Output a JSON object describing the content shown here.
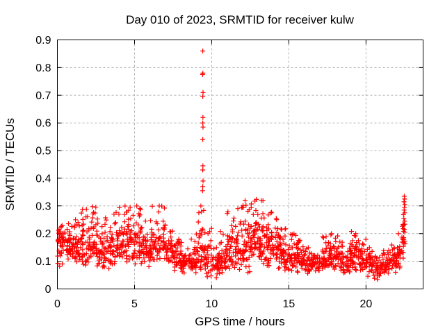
{
  "chart_data": {
    "type": "scatter",
    "title": "Day 010 of 2023, SRMTID for receiver kulw",
    "xlabel": "GPS time / hours",
    "ylabel": "SRMTID / TECUs",
    "xlim": [
      0,
      23.7
    ],
    "ylim": [
      0,
      0.9
    ],
    "xticks": [
      0,
      5,
      10,
      15,
      20
    ],
    "yticks": [
      0,
      0.1,
      0.2,
      0.3,
      0.4,
      0.5,
      0.6,
      0.7,
      0.8,
      0.9
    ],
    "grid": {
      "show": true,
      "style": "dashed",
      "color": "#b0b0b0"
    },
    "legend": false,
    "series_name": "SRMTID",
    "marker_style": "plus",
    "marker_color": "#ff0000",
    "background": "#ffffff",
    "axis_color": "#000000",
    "seed": 101,
    "bin_fields": [
      "x_start",
      "x_end",
      "y_min",
      "y_max",
      "y_mode",
      "n_points"
    ],
    "cloud_bins": [
      [
        0.0,
        0.5,
        0.07,
        0.23,
        0.17,
        40
      ],
      [
        0.5,
        1.0,
        0.08,
        0.24,
        0.17,
        40
      ],
      [
        1.0,
        1.5,
        0.09,
        0.25,
        0.16,
        38
      ],
      [
        1.5,
        2.0,
        0.07,
        0.3,
        0.15,
        38
      ],
      [
        2.0,
        2.5,
        0.08,
        0.3,
        0.16,
        38
      ],
      [
        2.5,
        3.0,
        0.06,
        0.26,
        0.14,
        36
      ],
      [
        3.0,
        3.5,
        0.06,
        0.26,
        0.13,
        36
      ],
      [
        3.5,
        4.0,
        0.07,
        0.28,
        0.15,
        36
      ],
      [
        4.0,
        4.5,
        0.07,
        0.3,
        0.16,
        38
      ],
      [
        4.5,
        5.0,
        0.08,
        0.31,
        0.17,
        40
      ],
      [
        5.0,
        5.5,
        0.07,
        0.31,
        0.16,
        40
      ],
      [
        5.5,
        6.0,
        0.07,
        0.26,
        0.14,
        36
      ],
      [
        6.0,
        6.5,
        0.09,
        0.3,
        0.16,
        38
      ],
      [
        6.5,
        7.0,
        0.09,
        0.3,
        0.16,
        38
      ],
      [
        7.0,
        7.5,
        0.07,
        0.21,
        0.13,
        36
      ],
      [
        7.5,
        8.0,
        0.04,
        0.18,
        0.11,
        36
      ],
      [
        8.0,
        8.5,
        0.05,
        0.17,
        0.1,
        36
      ],
      [
        8.5,
        9.0,
        0.05,
        0.18,
        0.1,
        36
      ],
      [
        9.0,
        9.5,
        0.05,
        0.3,
        0.11,
        38
      ],
      [
        9.5,
        10.0,
        0.04,
        0.22,
        0.1,
        36
      ],
      [
        10.0,
        10.5,
        0.03,
        0.16,
        0.09,
        34
      ],
      [
        10.5,
        11.0,
        0.05,
        0.21,
        0.11,
        36
      ],
      [
        11.0,
        11.5,
        0.06,
        0.28,
        0.13,
        38
      ],
      [
        11.5,
        12.0,
        0.05,
        0.3,
        0.14,
        38
      ],
      [
        12.0,
        12.5,
        0.04,
        0.32,
        0.16,
        42
      ],
      [
        12.5,
        13.0,
        0.08,
        0.33,
        0.18,
        42
      ],
      [
        13.0,
        13.5,
        0.08,
        0.32,
        0.17,
        40
      ],
      [
        13.5,
        14.0,
        0.06,
        0.28,
        0.15,
        38
      ],
      [
        14.0,
        14.5,
        0.06,
        0.26,
        0.14,
        38
      ],
      [
        14.5,
        15.0,
        0.05,
        0.22,
        0.12,
        36
      ],
      [
        15.0,
        15.5,
        0.06,
        0.2,
        0.12,
        36
      ],
      [
        15.5,
        16.0,
        0.05,
        0.18,
        0.1,
        36
      ],
      [
        16.0,
        16.5,
        0.05,
        0.16,
        0.09,
        34
      ],
      [
        16.5,
        17.0,
        0.05,
        0.15,
        0.09,
        34
      ],
      [
        17.0,
        17.5,
        0.06,
        0.19,
        0.11,
        36
      ],
      [
        17.5,
        18.0,
        0.06,
        0.2,
        0.12,
        36
      ],
      [
        18.0,
        18.5,
        0.05,
        0.2,
        0.11,
        36
      ],
      [
        18.5,
        19.0,
        0.05,
        0.17,
        0.1,
        34
      ],
      [
        19.0,
        19.5,
        0.06,
        0.21,
        0.12,
        36
      ],
      [
        19.5,
        20.0,
        0.05,
        0.18,
        0.1,
        34
      ],
      [
        20.0,
        20.5,
        0.04,
        0.15,
        0.09,
        34
      ],
      [
        20.5,
        21.0,
        0.03,
        0.12,
        0.07,
        32
      ],
      [
        21.0,
        21.5,
        0.04,
        0.14,
        0.08,
        32
      ],
      [
        21.5,
        22.0,
        0.05,
        0.16,
        0.1,
        32
      ],
      [
        22.0,
        22.3,
        0.07,
        0.2,
        0.12,
        20
      ],
      [
        22.3,
        22.55,
        0.09,
        0.28,
        0.16,
        22
      ]
    ],
    "outlier_points": [
      [
        9.42,
        0.86
      ],
      [
        9.43,
        0.78
      ],
      [
        9.41,
        0.775
      ],
      [
        9.44,
        0.71
      ],
      [
        9.42,
        0.695
      ],
      [
        9.43,
        0.62
      ],
      [
        9.42,
        0.6
      ],
      [
        9.44,
        0.585
      ],
      [
        9.42,
        0.54
      ],
      [
        9.43,
        0.445
      ],
      [
        9.42,
        0.43
      ],
      [
        9.44,
        0.39
      ],
      [
        9.42,
        0.37
      ],
      [
        9.41,
        0.355
      ],
      [
        22.48,
        0.335
      ],
      [
        22.5,
        0.325
      ],
      [
        22.46,
        0.315
      ],
      [
        22.52,
        0.305
      ],
      [
        22.49,
        0.295
      ],
      [
        22.47,
        0.285
      ],
      [
        22.51,
        0.275
      ],
      [
        22.45,
        0.255
      ],
      [
        22.5,
        0.245
      ],
      [
        22.44,
        0.23
      ],
      [
        22.48,
        0.215
      ],
      [
        22.52,
        0.205
      ]
    ]
  }
}
